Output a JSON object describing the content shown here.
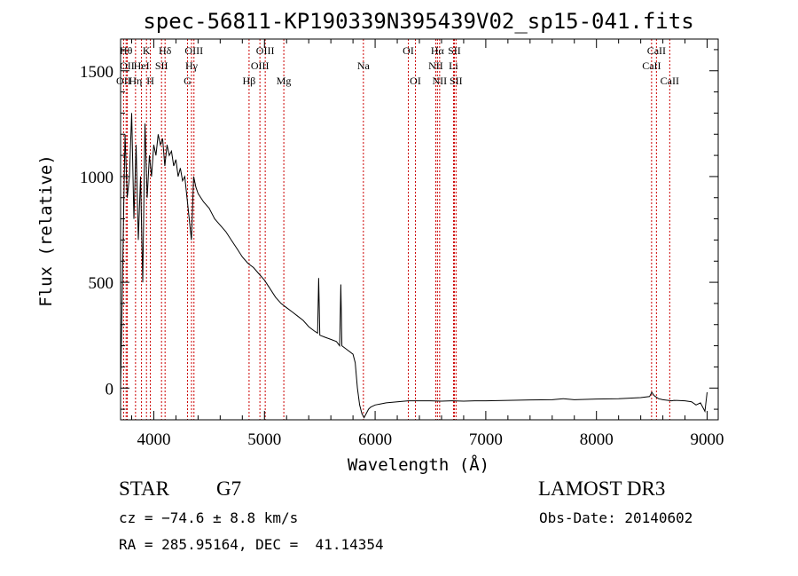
{
  "title": "spec-56811-KP190339N395439V02_sp15-041.fits",
  "info": {
    "class_label": "STAR",
    "subclass": "G7",
    "survey": "LAMOST DR3",
    "cz": "cz = −74.6 ± 8.8 km/s",
    "obs_date": "Obs-Date: 20140602",
    "coords": "RA = 285.95164, DEC =  41.14354"
  },
  "colors": {
    "spectrum": "#000000",
    "line_markers": "#cc0000",
    "axes": "#000000"
  },
  "chart_data": {
    "type": "line",
    "title": "spec-56811-KP190339N395439V02_sp15-041.fits",
    "xlabel": "Wavelength (Å)",
    "ylabel": "Flux (relative)",
    "xlim": [
      3700,
      9100
    ],
    "ylim": [
      -150,
      1650
    ],
    "xticks": [
      4000,
      5000,
      6000,
      7000,
      8000,
      9000
    ],
    "yticks": [
      0,
      500,
      1000,
      1500
    ],
    "grid": false,
    "legend": "none",
    "series": [
      {
        "x": [
          3700,
          3720,
          3740,
          3760,
          3780,
          3800,
          3820,
          3840,
          3860,
          3880,
          3900,
          3920,
          3940,
          3960,
          3980,
          4000,
          4020,
          4040,
          4060,
          4080,
          4100,
          4120,
          4140,
          4160,
          4180,
          4200,
          4220,
          4240,
          4260,
          4280,
          4300,
          4320,
          4340,
          4360,
          4380,
          4400,
          4450,
          4500,
          4550,
          4600,
          4650,
          4700,
          4750,
          4800,
          4850,
          4900,
          4950,
          5000,
          5050,
          5100,
          5150,
          5200,
          5250,
          5300,
          5350,
          5400,
          5450,
          5480,
          5490,
          5500,
          5550,
          5600,
          5650,
          5680,
          5690,
          5700,
          5750,
          5800,
          5820,
          5840,
          5860,
          5880,
          5900,
          5920,
          5940,
          5960,
          6000,
          6050,
          6100,
          6200,
          6300,
          6400,
          6500,
          6600,
          6700,
          6800,
          6900,
          7000,
          7200,
          7400,
          7600,
          7700,
          7800,
          8000,
          8200,
          8400,
          8480,
          8500,
          8520,
          8560,
          8600,
          8680,
          8700,
          8800,
          8860,
          8900,
          8940,
          8980,
          9000
        ],
        "values": [
          0,
          600,
          1200,
          900,
          1000,
          1300,
          800,
          1150,
          700,
          1000,
          500,
          1250,
          900,
          1100,
          1000,
          1150,
          1100,
          1200,
          1150,
          1180,
          1050,
          1150,
          1100,
          1120,
          1050,
          1080,
          1000,
          1040,
          980,
          1000,
          900,
          800,
          700,
          1000,
          950,
          920,
          880,
          850,
          800,
          770,
          740,
          700,
          660,
          620,
          590,
          570,
          540,
          510,
          470,
          430,
          400,
          380,
          360,
          340,
          320,
          290,
          270,
          260,
          520,
          250,
          240,
          230,
          220,
          200,
          490,
          200,
          180,
          160,
          120,
          0,
          -80,
          -120,
          -140,
          -120,
          -100,
          -90,
          -80,
          -75,
          -70,
          -65,
          -60,
          -60,
          -60,
          -62,
          -60,
          -62,
          -60,
          -60,
          -58,
          -56,
          -55,
          -50,
          -55,
          -52,
          -50,
          -45,
          -40,
          -20,
          -35,
          -50,
          -55,
          -60,
          -58,
          -60,
          -65,
          -80,
          -70,
          -110,
          -20
        ]
      }
    ],
    "line_markers": [
      {
        "name": "OII",
        "x": 3727,
        "row": 3
      },
      {
        "name": "Hθ",
        "x": 3750,
        "row": 1
      },
      {
        "name": "OII",
        "x": 3760,
        "row": 2
      },
      {
        "name": "Hη",
        "x": 3835,
        "row": 3
      },
      {
        "name": "HeI",
        "x": 3889,
        "row": 2
      },
      {
        "name": "K",
        "x": 3934,
        "row": 1
      },
      {
        "name": "H",
        "x": 3969,
        "row": 3
      },
      {
        "name": "SII",
        "x": 4070,
        "row": 2
      },
      {
        "name": "Hδ",
        "x": 4102,
        "row": 1
      },
      {
        "name": "G",
        "x": 4305,
        "row": 3
      },
      {
        "name": "Hγ",
        "x": 4341,
        "row": 2
      },
      {
        "name": "OIII",
        "x": 4363,
        "row": 1
      },
      {
        "name": "Hβ",
        "x": 4861,
        "row": 3
      },
      {
        "name": "OIII",
        "x": 4959,
        "row": 2
      },
      {
        "name": "OIII",
        "x": 5007,
        "row": 1
      },
      {
        "name": "Mg",
        "x": 5175,
        "row": 3
      },
      {
        "name": "Na",
        "x": 5894,
        "row": 2
      },
      {
        "name": "OI",
        "x": 6300,
        "row": 1
      },
      {
        "name": "OI",
        "x": 6364,
        "row": 3
      },
      {
        "name": "NII",
        "x": 6548,
        "row": 2
      },
      {
        "name": "Hα",
        "x": 6563,
        "row": 1
      },
      {
        "name": "NII",
        "x": 6583,
        "row": 3
      },
      {
        "name": "Li",
        "x": 6708,
        "row": 2
      },
      {
        "name": "SII",
        "x": 6716,
        "row": 1
      },
      {
        "name": "SII",
        "x": 6731,
        "row": 3
      },
      {
        "name": "CaII",
        "x": 8498,
        "row": 2
      },
      {
        "name": "CaII",
        "x": 8542,
        "row": 1
      },
      {
        "name": "CaII",
        "x": 8662,
        "row": 3
      }
    ]
  }
}
